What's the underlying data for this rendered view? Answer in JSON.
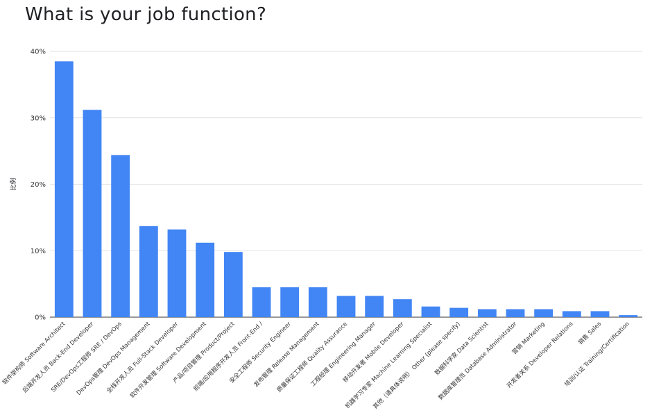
{
  "chart_data": {
    "type": "bar",
    "title": "What is your job function?",
    "ylabel": "比例",
    "xlabel": "",
    "ylim": [
      0,
      40
    ],
    "yticks": [
      "0%",
      "10%",
      "20%",
      "30%",
      "40%"
    ],
    "ytick_values": [
      0,
      10,
      20,
      30,
      40
    ],
    "grid": true,
    "bar_color": "#4285f4",
    "categories": [
      "软件架构师 Software Architect",
      "后端开发人员 Back-End Developer",
      "SRE/DevOps工程师 SRE / DevOps",
      "DevOps管理 DevOps Management",
      "全栈开发人员 Full-Stack Developer",
      "软件开发管理 Software Development",
      "产品/项目管理 Product/Project",
      "前端/应用程序开发人员 Front-End /",
      "安全工程师 Security Engineer",
      "发布管理 Release Management",
      "质量保证工程师 Quality Assurance",
      "工程经理 Engineering Manager",
      "移动开发者 Mobile Developer",
      "机器学习专家 Machine Learning Specialist",
      "其他（请具体说明） Other (please specify)",
      "数据科学家 Data Scientist",
      "数据库管理员 Database Administrator",
      "营销 Marketing",
      "开发者关系 Developer Relations",
      "销售 Sales",
      "培训/认证 Training/Certification"
    ],
    "values": [
      38.5,
      31.2,
      24.4,
      13.7,
      13.2,
      11.2,
      9.8,
      4.5,
      4.5,
      4.5,
      3.2,
      3.2,
      2.7,
      1.6,
      1.4,
      1.2,
      1.2,
      1.2,
      0.9,
      0.9,
      0.3
    ]
  }
}
